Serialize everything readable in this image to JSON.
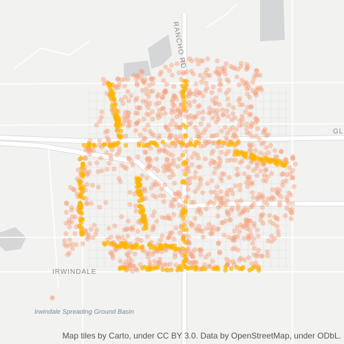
{
  "map": {
    "labels": {
      "rancho_rd": "RANCHO RD",
      "gl": "GL",
      "irwindale": "IRWINDALE",
      "basin": "Irwindale Spreading Ground Basin"
    },
    "attribution": "Map tiles by Carto, under CC BY 3.0. Data by OpenStreetMap, under ODbL."
  }
}
